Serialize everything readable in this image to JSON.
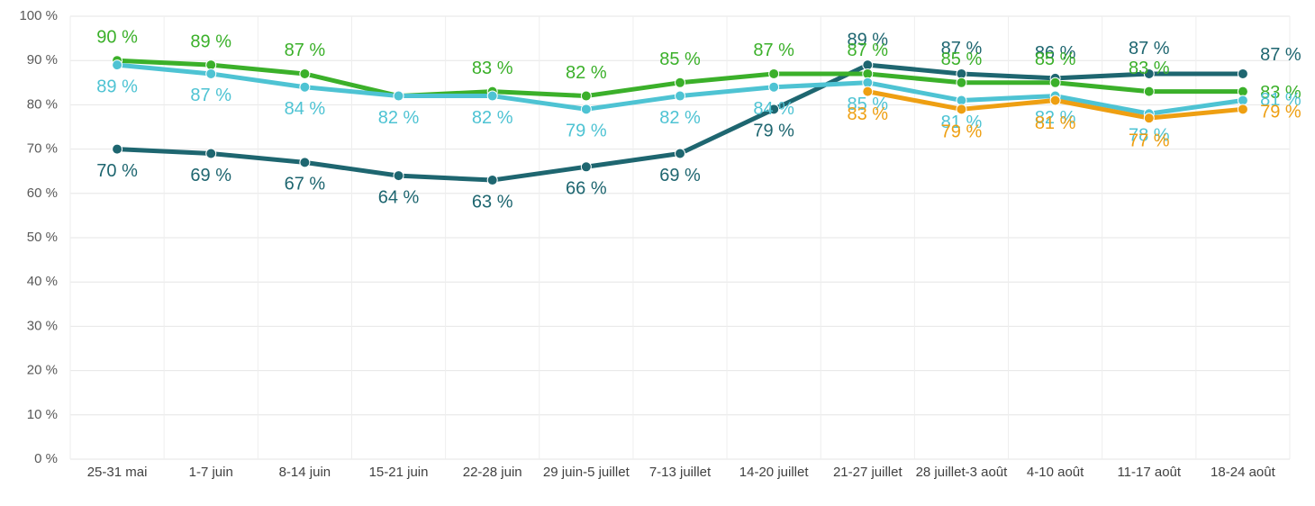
{
  "chart_data": {
    "type": "line",
    "categories": [
      "25-31 mai",
      "1-7 juin",
      "8-14 juin",
      "15-21 juin",
      "22-28 juin",
      "29 juin-5 juillet",
      "7-13 juillet",
      "14-20 juillet",
      "21-27 juillet",
      "28 juillet-3 août",
      "4-10 août",
      "11-17 août",
      "18-24 août"
    ],
    "series": [
      {
        "color": "#1e6670",
        "values": [
          70,
          69,
          67,
          64,
          63,
          66,
          69,
          79,
          89,
          87,
          86,
          87,
          87
        ],
        "value_labels": [
          "70 %",
          "69 %",
          "67 %",
          "64 %",
          "63 %",
          "66 %",
          "69 %",
          "79 %",
          "89 %",
          "87 %",
          "86 %",
          "87 %",
          "87 %"
        ]
      },
      {
        "color": "#3bb02a",
        "values": [
          90,
          89,
          87,
          82,
          83,
          82,
          85,
          87,
          87,
          85,
          85,
          83,
          83
        ],
        "value_labels": [
          "90 %",
          "89 %",
          "87 %",
          null,
          "83 %",
          "82 %",
          "85 %",
          "87 %",
          "87 %",
          "85 %",
          "85 %",
          "83 %",
          "83 %"
        ]
      },
      {
        "color": "#4ec3d3",
        "values": [
          89,
          87,
          84,
          82,
          82,
          79,
          82,
          84,
          85,
          81,
          82,
          78,
          81
        ],
        "value_labels": [
          "89 %",
          "87 %",
          "84 %",
          "82 %",
          "82 %",
          "79 %",
          "82 %",
          "84 %",
          "85 %",
          "81 %",
          "82 %",
          "78 %",
          "81 %"
        ]
      },
      {
        "color": "#ee9f12",
        "values": [
          null,
          null,
          null,
          null,
          null,
          null,
          null,
          null,
          83,
          79,
          81,
          77,
          79
        ],
        "value_labels": [
          null,
          null,
          null,
          null,
          null,
          null,
          null,
          null,
          "83 %",
          "79 %",
          "81 %",
          "77 %",
          "79 %"
        ]
      }
    ],
    "ylim": [
      0,
      100
    ],
    "yticks": [
      {
        "value": 0,
        "label": "0 %"
      },
      {
        "value": 10,
        "label": "10 %"
      },
      {
        "value": 20,
        "label": "20 %"
      },
      {
        "value": 30,
        "label": "30 %"
      },
      {
        "value": 40,
        "label": "40 %"
      },
      {
        "value": 50,
        "label": "50 %"
      },
      {
        "value": 60,
        "label": "60 %"
      },
      {
        "value": 70,
        "label": "70 %"
      },
      {
        "value": 80,
        "label": "80 %"
      },
      {
        "value": 90,
        "label": "90 %"
      },
      {
        "value": 100,
        "label": "100 %"
      }
    ],
    "grid": true
  }
}
